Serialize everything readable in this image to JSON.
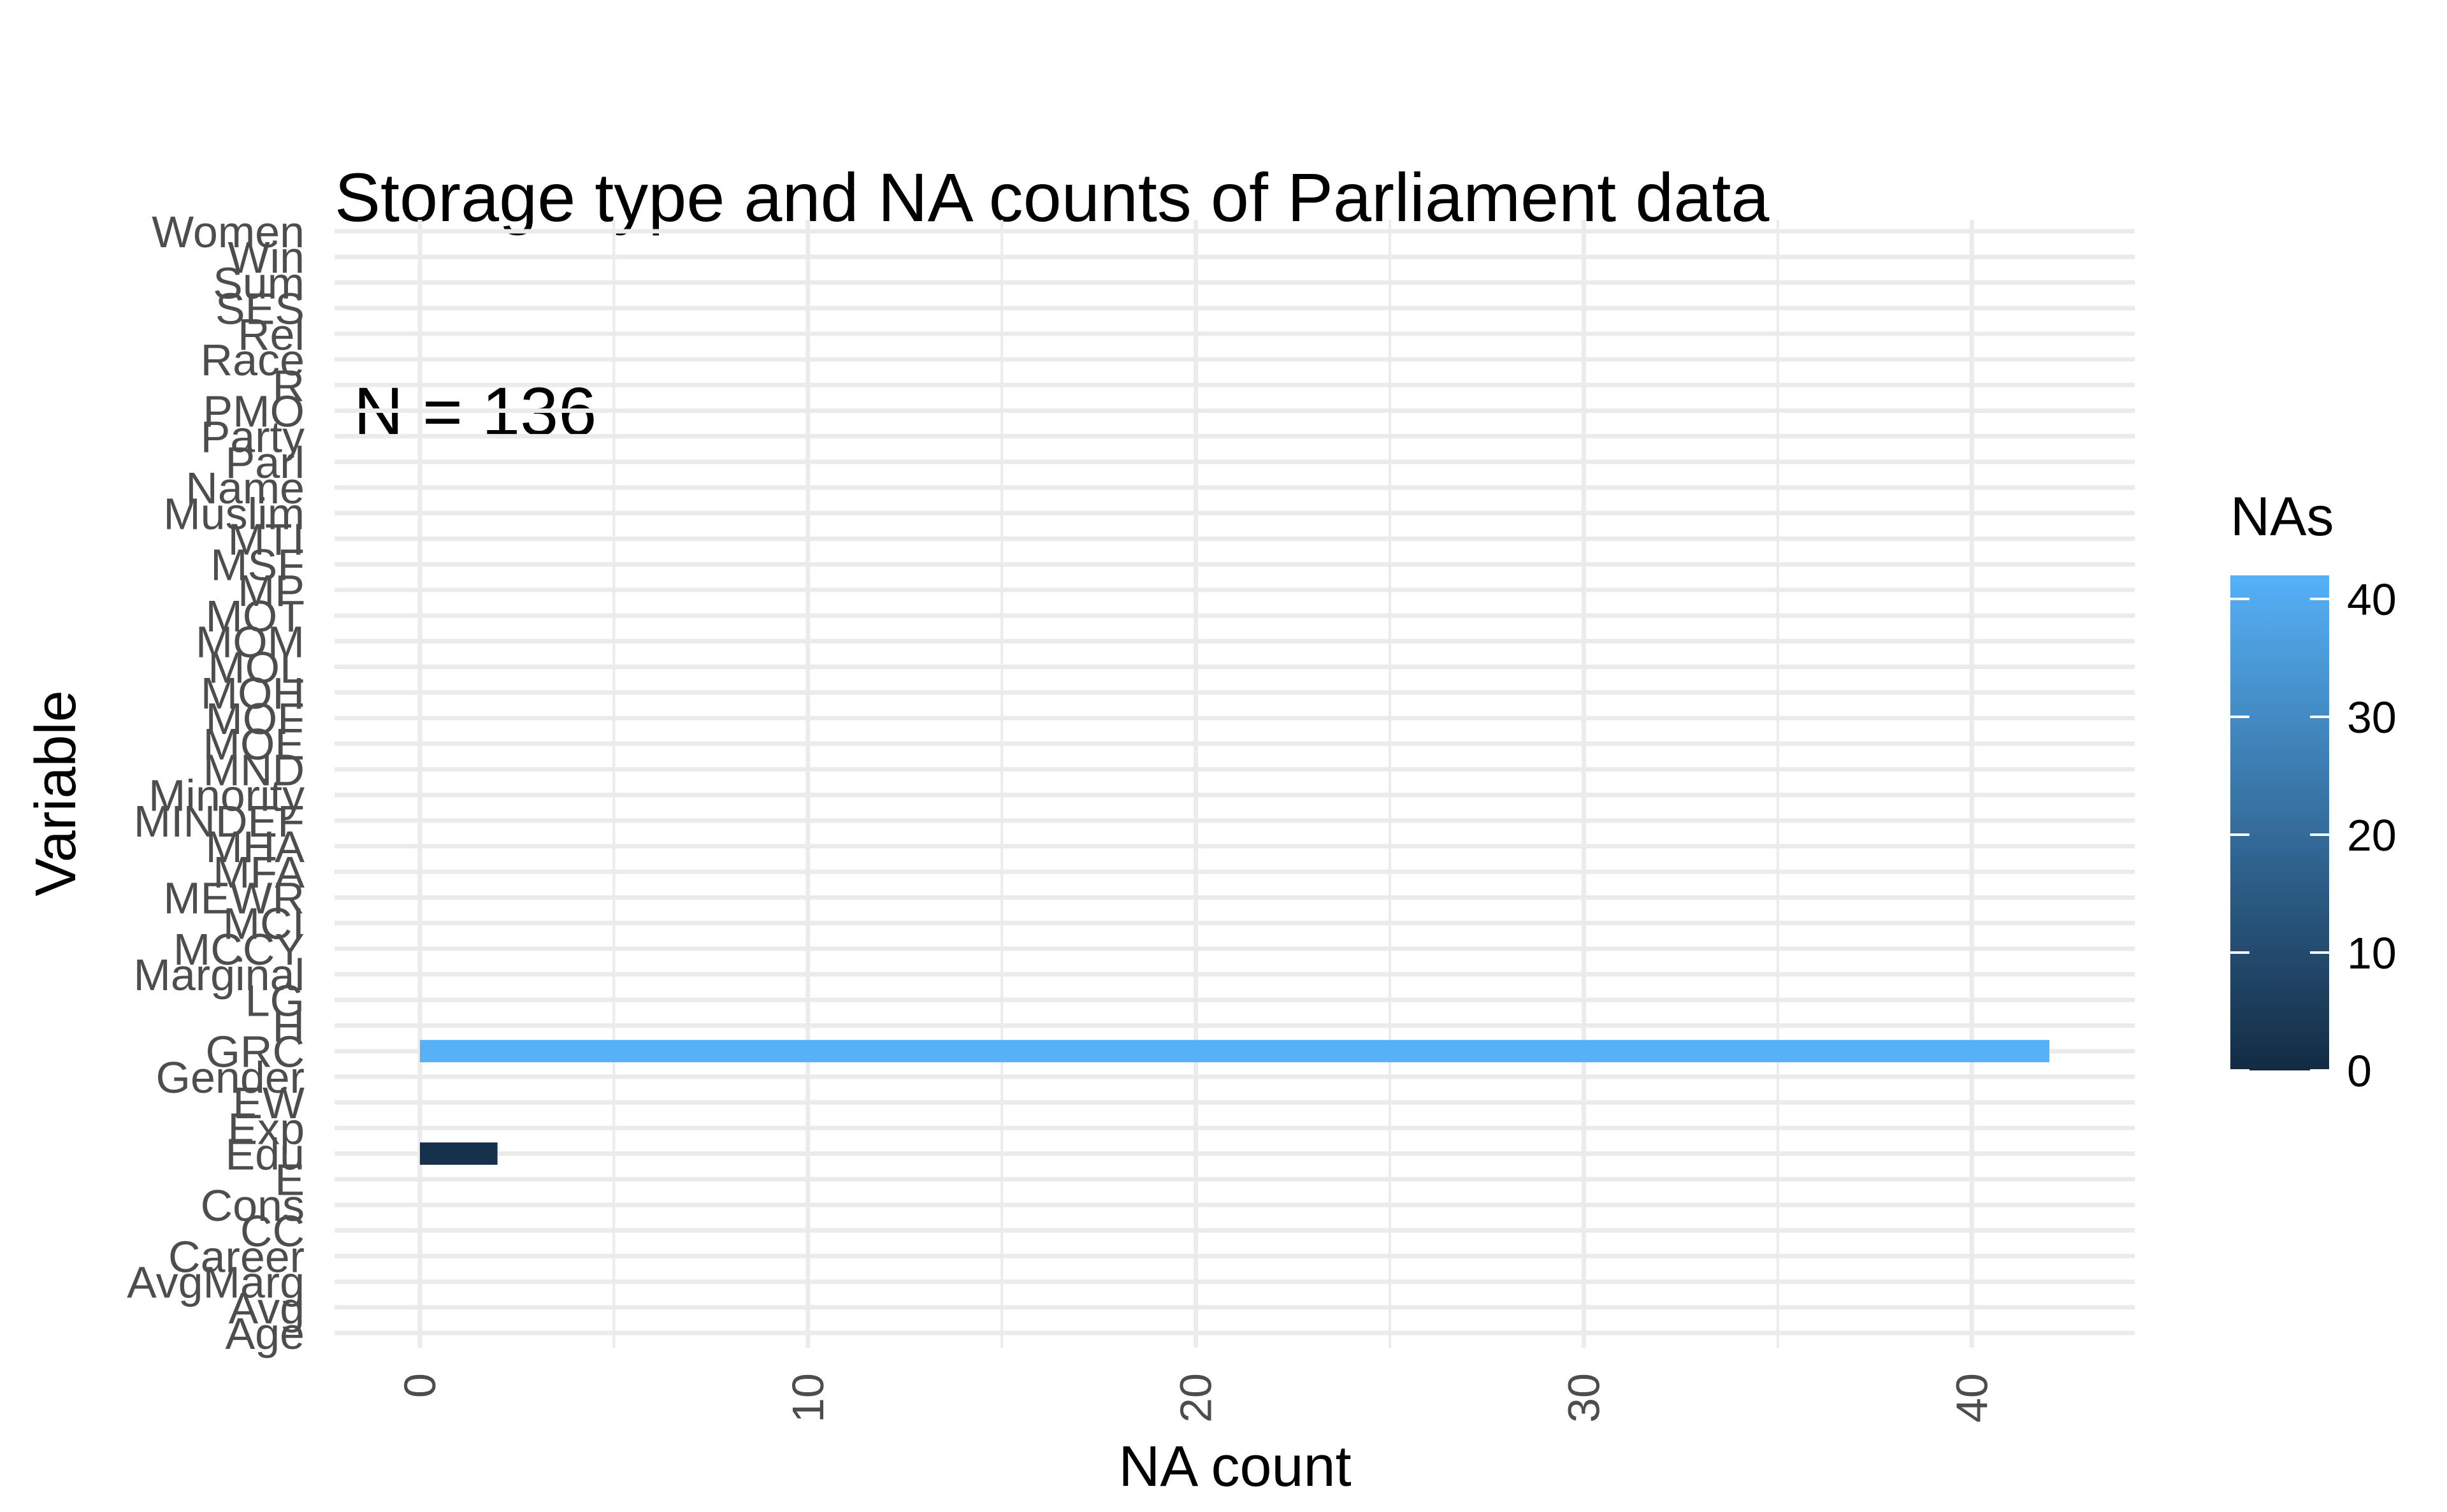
{
  "chart_data": {
    "type": "bar",
    "orientation": "horizontal",
    "title": "Storage type and NA counts of Parliament data",
    "subtitle": "N = 136",
    "xlabel": "NA count",
    "ylabel": "Variable",
    "xlim": [
      -2.2,
      44.2
    ],
    "x_ticks": [
      0,
      10,
      20,
      30,
      40
    ],
    "x_minor_ticks": [
      5,
      15,
      25,
      35
    ],
    "grid": true,
    "categories": [
      "Age",
      "Avg",
      "AvgMarg",
      "Career",
      "CC",
      "Cons",
      "E",
      "Edu",
      "Exp",
      "EW",
      "Gender",
      "GRC",
      "H",
      "LG",
      "Marginal",
      "MCCY",
      "MCI",
      "MEWR",
      "MFA",
      "MHA",
      "MINDEF",
      "Minority",
      "MND",
      "MOE",
      "MOF",
      "MOH",
      "MOL",
      "MOM",
      "MOT",
      "MP",
      "MSF",
      "MTI",
      "Muslim",
      "Name",
      "Parl",
      "Party",
      "PMO",
      "R",
      "Race",
      "Rel",
      "SES",
      "Sum",
      "Win",
      "Women"
    ],
    "values": [
      0,
      0,
      0,
      0,
      0,
      0,
      0,
      2,
      0,
      0,
      0,
      42,
      0,
      0,
      0,
      0,
      0,
      0,
      0,
      0,
      0,
      0,
      0,
      0,
      0,
      0,
      0,
      0,
      0,
      0,
      0,
      0,
      0,
      0,
      0,
      0,
      0,
      0,
      0,
      0,
      0,
      0,
      0,
      0
    ],
    "legend": {
      "title": "NAs",
      "position": "right",
      "type": "colorbar",
      "range": [
        0,
        42
      ],
      "ticks": [
        0,
        10,
        20,
        30,
        40
      ],
      "low_color": "#132B43",
      "high_color": "#56B1F7"
    },
    "colors": {
      "grid": "#ebebeb",
      "axis_text": "#4d4d4d",
      "title": "#000000"
    }
  }
}
